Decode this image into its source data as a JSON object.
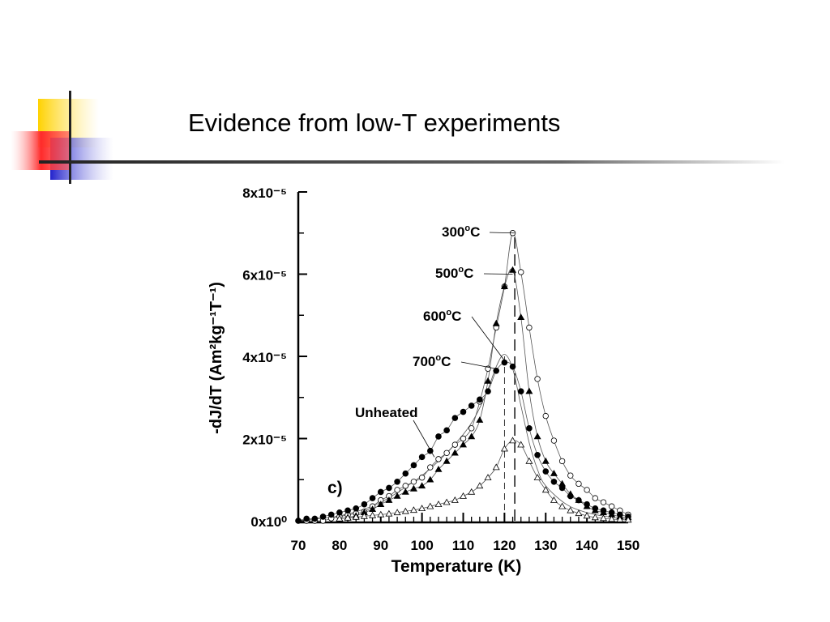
{
  "slide": {
    "title": "Evidence from low-T experiments"
  },
  "colors": {
    "accent_yellow": "#ffd200",
    "accent_red": "#ff2a2a",
    "accent_blue": "#2222cc",
    "rule": "#222222",
    "ink": "#000000"
  },
  "chart_data": {
    "type": "scatter",
    "xlabel": "Temperature (K)",
    "ylabel": "-dJ/dT (Am²kg⁻¹T⁻¹)",
    "xlim": [
      70,
      150
    ],
    "ylim": [
      0,
      8e-05
    ],
    "x_ticks": [
      70,
      80,
      90,
      100,
      110,
      120,
      130,
      140,
      150
    ],
    "x_tick_labels": [
      "70",
      "80",
      "90",
      "100",
      "110",
      "120",
      "130",
      "140",
      "150"
    ],
    "y_ticks": [
      0,
      2e-05,
      4e-05,
      6e-05,
      8e-05
    ],
    "y_tick_labels": [
      "0x10⁰",
      "2x10⁻⁵",
      "4x10⁻⁵",
      "6x10⁻⁵",
      "8x10⁻⁵"
    ],
    "panel_label": "c)",
    "grid": false,
    "vertical_markers": [
      120,
      122.5
    ],
    "series": [
      {
        "name": "300°C",
        "marker": "open-circle",
        "x": [
          70,
          72,
          74,
          76,
          78,
          80,
          82,
          84,
          86,
          88,
          90,
          92,
          94,
          96,
          98,
          100,
          102,
          104,
          106,
          108,
          110,
          112,
          114,
          116,
          118,
          120,
          122,
          124,
          126,
          128,
          130,
          132,
          134,
          136,
          138,
          140,
          142,
          144,
          146,
          148,
          150
        ],
        "y": [
          2e-10,
          1e-09,
          2e-09,
          4e-09,
          6e-07,
          1e-06,
          1.4e-06,
          1.8e-06,
          2.2e-06,
          3.5e-06,
          5e-06,
          6e-06,
          7.5e-06,
          8.5e-06,
          9.5e-06,
          1.05e-05,
          1.3e-05,
          1.5e-05,
          1.65e-05,
          1.85e-05,
          2e-05,
          2.25e-05,
          2.9e-05,
          3.7e-05,
          4.7e-05,
          5.7e-05,
          7e-05,
          6.05e-05,
          4.7e-05,
          3.45e-05,
          2.55e-05,
          1.95e-05,
          1.45e-05,
          1.1e-05,
          9e-06,
          7.5e-06,
          5.5e-06,
          4.5e-06,
          3.5e-06,
          2.5e-06,
          1.5e-06
        ]
      },
      {
        "name": "500°C",
        "marker": "filled-triangle",
        "x": [
          80,
          82,
          84,
          86,
          88,
          90,
          92,
          94,
          96,
          98,
          100,
          102,
          104,
          106,
          108,
          110,
          112,
          114,
          116,
          118,
          120,
          122,
          124,
          126,
          128,
          130,
          132,
          134,
          136,
          138,
          140,
          142,
          144,
          146,
          148,
          150
        ],
        "y": [
          5e-07,
          8e-07,
          1.2e-06,
          2e-06,
          2.8e-06,
          4e-06,
          5e-06,
          6e-06,
          7e-06,
          7.8e-06,
          8.5e-06,
          1e-05,
          1.25e-05,
          1.45e-05,
          1.65e-05,
          1.85e-05,
          2.05e-05,
          2.45e-05,
          3.4e-05,
          4.8e-05,
          5.7e-05,
          6.1e-05,
          4.95e-05,
          3.15e-05,
          2.05e-05,
          1.45e-05,
          1.15e-05,
          9e-06,
          6.5e-06,
          5e-06,
          3.5e-06,
          2.5e-06,
          2e-06,
          1.5e-06,
          1e-06,
          8e-07
        ]
      },
      {
        "name": "700°C",
        "marker": "filled-circle",
        "x": [
          70,
          72,
          74,
          76,
          78,
          80,
          82,
          84,
          86,
          88,
          90,
          92,
          94,
          96,
          98,
          100,
          102,
          104,
          106,
          108,
          110,
          112,
          114,
          116,
          118,
          120,
          122,
          124,
          126,
          128,
          130,
          132,
          134,
          136,
          138,
          140,
          142,
          144,
          146,
          148,
          150
        ],
        "y": [
          0.0,
          5e-07,
          5e-07,
          1e-06,
          1.5e-06,
          2e-06,
          2.5e-06,
          3e-06,
          4e-06,
          5.5e-06,
          7e-06,
          8e-06,
          9.5e-06,
          1.15e-05,
          1.35e-05,
          1.55e-05,
          1.7e-05,
          2.05e-05,
          2.2e-05,
          2.5e-05,
          2.65e-05,
          2.8e-05,
          2.95e-05,
          3.15e-05,
          3.65e-05,
          3.85e-05,
          3.75e-05,
          3.15e-05,
          2.25e-05,
          1.6e-05,
          1.2e-05,
          9.5e-06,
          8e-06,
          6e-06,
          5e-06,
          4e-06,
          3e-06,
          2.5e-06,
          2e-06,
          1.5e-06,
          1e-06
        ]
      },
      {
        "name": "600°C",
        "marker": "open-triangle",
        "x": [
          80,
          82,
          84,
          86,
          88,
          90,
          92,
          94,
          96,
          98,
          100,
          102,
          104,
          106,
          108,
          110,
          112,
          114,
          116,
          118,
          120,
          122,
          124,
          126,
          128,
          130,
          132,
          134,
          136,
          138,
          140,
          142,
          144,
          146,
          148,
          150
        ],
        "y": [
          5e-07,
          7e-07,
          9e-07,
          1.1e-06,
          1.3e-06,
          1.5e-06,
          1.7e-06,
          2e-06,
          2.3e-06,
          2.6e-06,
          3e-06,
          3.5e-06,
          4e-06,
          4.5e-06,
          5e-06,
          6e-06,
          7e-06,
          8.5e-06,
          1.05e-05,
          1.3e-05,
          1.75e-05,
          1.95e-05,
          1.85e-05,
          1.45e-05,
          1.05e-05,
          7.5e-06,
          5e-06,
          3.5e-06,
          2.5e-06,
          1.8e-06,
          1.2e-06,
          8e-07,
          6e-07,
          4e-07,
          3e-07,
          2e-07
        ]
      },
      {
        "name": "Unheated",
        "marker": "none",
        "x": [
          70,
          75,
          80,
          85,
          90,
          95,
          100,
          105,
          110,
          113,
          116,
          118,
          120,
          122,
          124,
          126,
          128,
          130,
          135,
          140,
          145,
          150
        ],
        "y": [
          0.0,
          5e-07,
          1.2e-06,
          2.5e-06,
          4.5e-06,
          7.5e-06,
          1.1e-05,
          1.55e-05,
          2.1e-05,
          2.55e-05,
          3.2e-05,
          3.75e-05,
          4.05e-05,
          3.7e-05,
          2.8e-05,
          1.9e-05,
          1.25e-05,
          8.5e-06,
          4e-06,
          2e-06,
          1e-06,
          5e-07
        ]
      }
    ],
    "annotations": [
      {
        "text": "300",
        "sup": "o",
        "suffix": "C",
        "points_to_series": "300°C"
      },
      {
        "text": "500",
        "sup": "o",
        "suffix": "C",
        "points_to_series": "500°C"
      },
      {
        "text": "600",
        "sup": "o",
        "suffix": "C",
        "points_to_series": "600°C"
      },
      {
        "text": "700",
        "sup": "o",
        "suffix": "C",
        "points_to_series": "700°C"
      },
      {
        "text": "Unheated",
        "sup": "",
        "suffix": "",
        "points_to_series": "Unheated"
      }
    ]
  }
}
